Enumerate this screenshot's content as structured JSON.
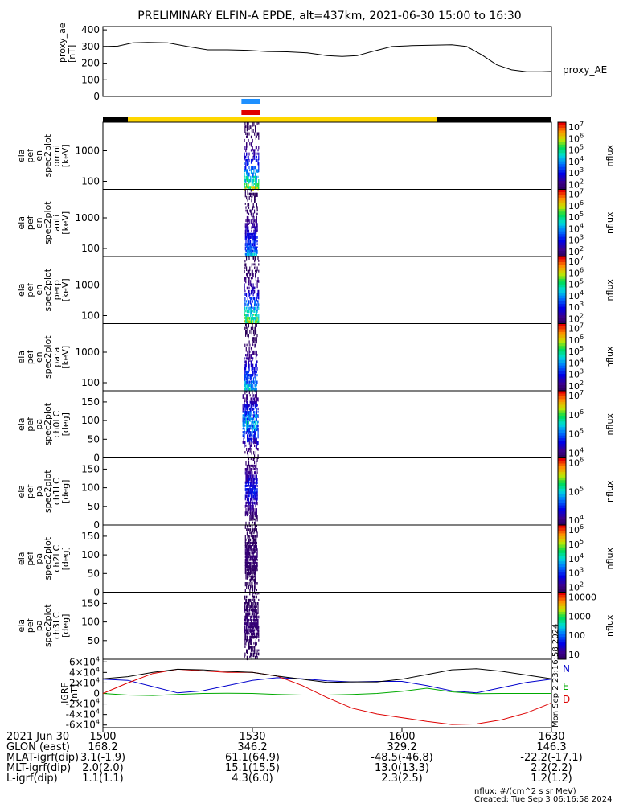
{
  "title": "PRELIMINARY ELFIN-A EPDE, alt=437km, 2021-06-30 15:00 to 16:30",
  "colors": {
    "science_bar": "#ffd700",
    "idle_bar": "#000000",
    "marker_blue": "#1e90ff",
    "marker_red": "#e00000",
    "igrf_n": "#0000cc",
    "igrf_e": "#00aa00",
    "igrf_d": "#dd0000",
    "igrf_total": "#000000"
  },
  "chart_data": [
    {
      "id": "proxy_ae",
      "type": "line",
      "ylabel": [
        "proxy_ae",
        "[nT]"
      ],
      "series_label": "proxy_AE",
      "ylim": [
        0,
        420
      ],
      "yticks": [
        0,
        100,
        200,
        300,
        400
      ],
      "x_minutes": [
        0,
        3,
        6,
        9,
        13,
        17,
        21,
        25,
        29,
        33,
        37,
        41,
        45,
        48,
        51,
        54,
        58,
        62,
        66,
        70,
        73,
        76,
        79,
        82,
        85,
        88,
        90
      ],
      "values": [
        300,
        302,
        322,
        325,
        322,
        300,
        280,
        280,
        277,
        270,
        268,
        262,
        245,
        240,
        245,
        270,
        300,
        305,
        308,
        310,
        300,
        250,
        190,
        160,
        148,
        148,
        150
      ]
    },
    {
      "id": "status_bars",
      "type": "timeline",
      "science_interval_minutes": [
        5,
        67
      ],
      "markers": [
        {
          "color": "marker_blue",
          "start_minute": 27.8,
          "end_minute": 31.5
        },
        {
          "color": "marker_red",
          "start_minute": 27.8,
          "end_minute": 31.5
        }
      ]
    },
    {
      "id": "spec_omni",
      "type": "heatmap",
      "scale": "log",
      "ylabel": [
        "ela",
        "pef",
        "en",
        "spec2plot",
        "omni",
        "[keV]"
      ],
      "yticks": [
        "100",
        "1000"
      ],
      "colorbar_label": "nflux",
      "colorbar_ticks": [
        "10^2",
        "10^3",
        "10^4",
        "10^5",
        "10^6",
        "10^7"
      ],
      "active_minutes": [
        28.3,
        31.3
      ]
    },
    {
      "id": "spec_anti",
      "type": "heatmap",
      "scale": "log",
      "ylabel": [
        "ela",
        "pef",
        "en",
        "spec2plot",
        "anti",
        "[keV]"
      ],
      "yticks": [
        "100",
        "1000"
      ],
      "colorbar_label": "nflux",
      "colorbar_ticks": [
        "10^2",
        "10^3",
        "10^4",
        "10^5",
        "10^6",
        "10^7"
      ],
      "active_minutes": [
        28.5,
        31.0
      ]
    },
    {
      "id": "spec_perp",
      "type": "heatmap",
      "scale": "log",
      "ylabel": [
        "ela",
        "pef",
        "en",
        "spec2plot",
        "perp",
        "[keV]"
      ],
      "yticks": [
        "100",
        "1000"
      ],
      "colorbar_label": "nflux",
      "colorbar_ticks": [
        "10^2",
        "10^3",
        "10^4",
        "10^5",
        "10^6",
        "10^7"
      ],
      "active_minutes": [
        28.3,
        31.3
      ]
    },
    {
      "id": "spec_para",
      "type": "heatmap",
      "scale": "log",
      "ylabel": [
        "ela",
        "pef",
        "en",
        "spec2plot",
        "para",
        "[keV]"
      ],
      "yticks": [
        "100",
        "1000"
      ],
      "colorbar_label": "nflux",
      "colorbar_ticks": [
        "10^2",
        "10^3",
        "10^4",
        "10^5",
        "10^6",
        "10^7"
      ],
      "active_minutes": [
        28.3,
        31.0
      ]
    },
    {
      "id": "spec_ch0",
      "type": "heatmap",
      "ylabel": [
        "ela",
        "pef",
        "pa",
        "spec2plot",
        "ch0LC",
        "[deg]"
      ],
      "yticks": [
        "0",
        "50",
        "100",
        "150"
      ],
      "colorbar_label": "nflux",
      "colorbar_ticks": [
        "10^4",
        "10^5",
        "10^6",
        "10^7"
      ],
      "active_minutes": [
        28.0,
        31.2
      ]
    },
    {
      "id": "spec_ch1",
      "type": "heatmap",
      "ylabel": [
        "ela",
        "pef",
        "pa",
        "spec2plot",
        "ch1LC",
        "[deg]"
      ],
      "yticks": [
        "0",
        "50",
        "100",
        "150"
      ],
      "colorbar_label": "nflux",
      "colorbar_ticks": [
        "10^4",
        "10^5",
        "10^6"
      ],
      "active_minutes": [
        28.5,
        31.0
      ]
    },
    {
      "id": "spec_ch2",
      "type": "heatmap",
      "ylabel": [
        "ela",
        "pef",
        "pa",
        "spec2plot",
        "ch2LC",
        "[deg]"
      ],
      "yticks": [
        "0",
        "50",
        "100",
        "150"
      ],
      "colorbar_label": "nflux",
      "colorbar_ticks": [
        "10^2",
        "10^3",
        "10^4",
        "10^5",
        "10^6"
      ],
      "active_minutes": [
        28.5,
        31.0
      ]
    },
    {
      "id": "spec_ch3",
      "type": "heatmap",
      "ylabel": [
        "ela",
        "pef",
        "pa",
        "spec2plot",
        "ch3LC",
        "[deg]"
      ],
      "yticks": [
        "50",
        "100",
        "150"
      ],
      "colorbar_label": "nflux",
      "colorbar_ticks": [
        "10",
        "100",
        "1000",
        "10000"
      ],
      "active_minutes": [
        28.3,
        31.3
      ]
    },
    {
      "id": "igrf",
      "type": "line",
      "ylabel": [
        "IGRF",
        "[nT]"
      ],
      "ylim": [
        -65000,
        65000
      ],
      "yticks": [
        "-6×10^4",
        "-4×10^4",
        "-2×10^4",
        "0",
        "2×10^4",
        "4×10^4",
        "6×10^4"
      ],
      "x_minutes": [
        0,
        5,
        10,
        15,
        20,
        25,
        30,
        35,
        40,
        45,
        50,
        55,
        60,
        65,
        70,
        75,
        80,
        85,
        90
      ],
      "series": [
        {
          "name": "N",
          "color": "igrf_n",
          "values": [
            27000,
            25000,
            13000,
            1000,
            5000,
            15000,
            25000,
            30000,
            28000,
            24000,
            22000,
            23000,
            23000,
            15000,
            5000,
            1000,
            11000,
            21000,
            27000
          ]
        },
        {
          "name": "E",
          "color": "igrf_e",
          "values": [
            0,
            -3000,
            -4000,
            -2000,
            0,
            500,
            0,
            -2000,
            -3000,
            -3000,
            -2000,
            0,
            4000,
            10000,
            3000,
            -500,
            0,
            0,
            0
          ]
        },
        {
          "name": "D",
          "color": "igrf_d",
          "values": [
            0,
            20000,
            38000,
            46000,
            43000,
            40000,
            40000,
            33000,
            15000,
            -8000,
            -28000,
            -39000,
            -46000,
            -53000,
            -59000,
            -58000,
            -50000,
            -37000,
            -18000
          ]
        },
        {
          "color": "igrf_total",
          "values": [
            28000,
            32000,
            40000,
            46000,
            45000,
            42000,
            40000,
            33000,
            27000,
            21000,
            22000,
            22000,
            27000,
            36000,
            45000,
            47000,
            42000,
            35000,
            28000
          ]
        }
      ]
    }
  ],
  "footer": {
    "rows": [
      {
        "label": "2021 Jun 30",
        "values": [
          "1500",
          "1530",
          "1600",
          "1630"
        ]
      },
      {
        "label": "GLON (east)",
        "values": [
          "168.2",
          "346.2",
          "329.2",
          "146.3"
        ]
      },
      {
        "label": "MLAT-igrf(dip)",
        "values": [
          "3.1(-1.9)",
          "61.1(64.9)",
          "-48.5(-46.8)",
          "-22.2(-17.1)"
        ]
      },
      {
        "label": "MLT-igrf(dip)",
        "values": [
          "2.0(2.0)",
          "15.1(15.5)",
          "13.0(13.3)",
          "2.2(2.2)"
        ]
      },
      {
        "label": "L-igrf(dip)",
        "values": [
          "1.1(1.1)",
          "4.3(6.0)",
          "2.3(2.5)",
          "1.2(1.2)"
        ]
      }
    ],
    "units_note": "nflux: #/(cm^2 s sr MeV)",
    "created_note": "Created: Tue Sep  3 06:16:58 2024",
    "side_stamp": "Mon Sep  2 23:16:58 2024"
  }
}
